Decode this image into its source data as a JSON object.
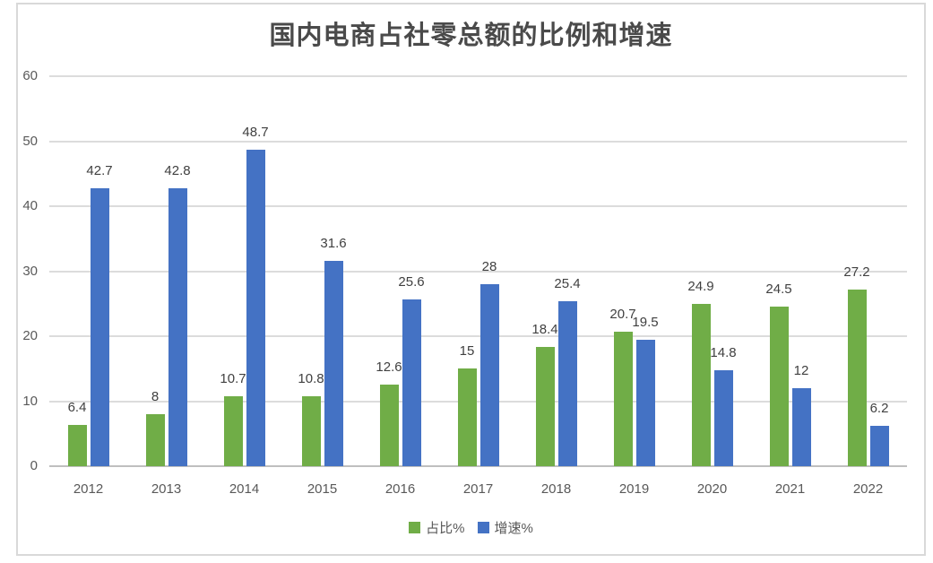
{
  "chart_data": {
    "type": "bar",
    "title": "国内电商占社零总额的比例和增速",
    "categories": [
      "2012",
      "2013",
      "2014",
      "2015",
      "2016",
      "2017",
      "2018",
      "2019",
      "2020",
      "2021",
      "2022"
    ],
    "series": [
      {
        "name": "占比%",
        "color": "#70AD47",
        "values": [
          6.4,
          8,
          10.7,
          10.8,
          12.6,
          15,
          18.4,
          20.7,
          24.9,
          24.5,
          27.2
        ],
        "labels": [
          "6.4",
          "8",
          "10.7",
          "10.8",
          "12.6",
          "15",
          "18.4",
          "20.7",
          "24.9",
          "24.5",
          "27.2"
        ]
      },
      {
        "name": "增速%",
        "color": "#4472C4",
        "values": [
          42.7,
          42.8,
          48.7,
          31.6,
          25.6,
          28,
          25.4,
          19.5,
          14.8,
          12,
          6.2
        ],
        "labels": [
          "42.7",
          "42.8",
          "48.7",
          "31.6",
          "25.6",
          "28",
          "25.4",
          "19.5",
          "14.8",
          "12",
          "6.2"
        ]
      }
    ],
    "ylim": [
      0,
      60
    ],
    "yticks": [
      0,
      10,
      20,
      30,
      40,
      50,
      60
    ],
    "grid": true,
    "legend_position": "bottom"
  },
  "colors": {
    "gridline": "#dcdcdc",
    "axis_line": "#bfbfbf",
    "tick_text": "#595959",
    "data_label_text": "#404040",
    "frame_border": "#d9d9d9"
  }
}
